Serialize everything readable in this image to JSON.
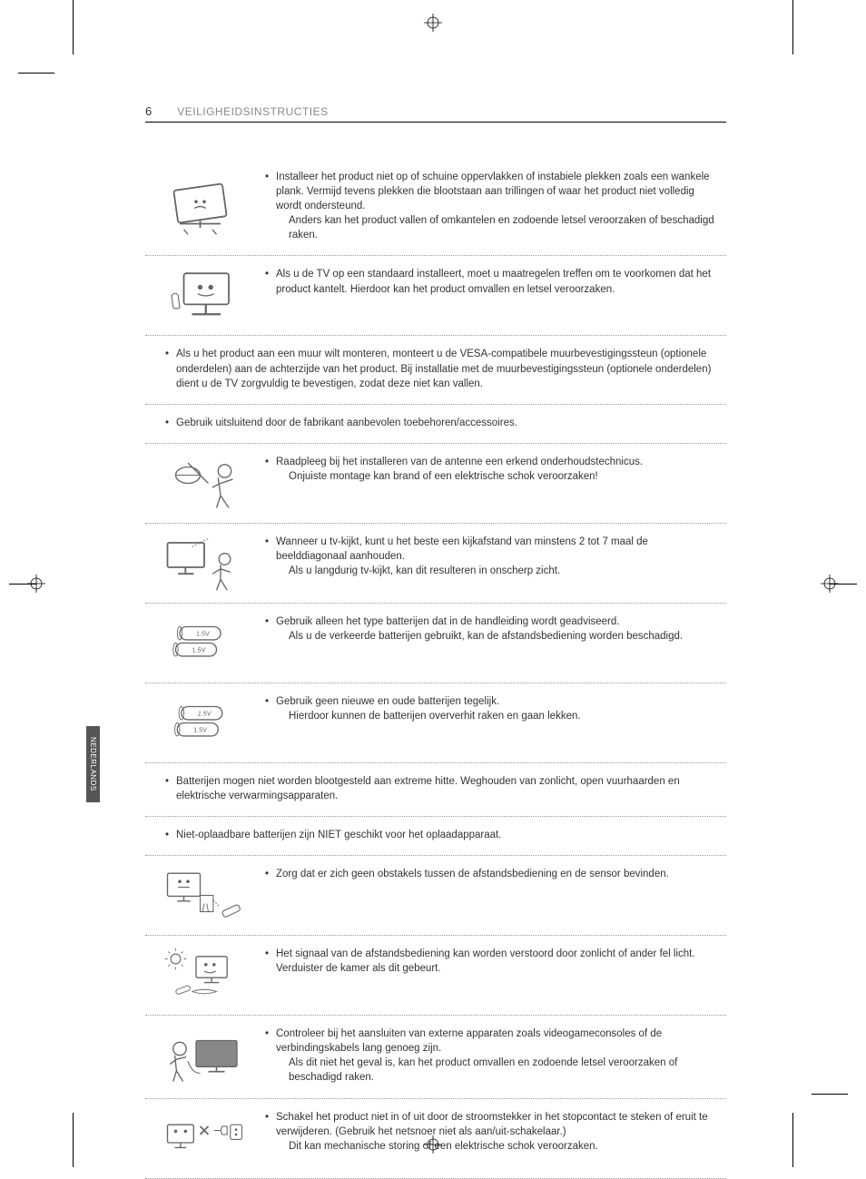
{
  "page_number": "6",
  "section_title": "VEILIGHEIDSINSTRUCTIES",
  "side_tab": "NEDERLANDS",
  "colors": {
    "text": "#333333",
    "muted": "#888888",
    "dots": "#999999",
    "tab_bg": "#555555",
    "tab_text": "#ffffff",
    "background": "#ffffff"
  },
  "rows": [
    {
      "icon": "tv-tilt",
      "items": [
        {
          "text": "Installeer het product niet op of schuine oppervlakken of instabiele plekken zoals een wankele plank. Vermijd tevens plekken die blootstaan aan trillingen of waar het product niet volledig wordt ondersteund.",
          "sub": "Anders kan het product vallen of omkantelen en zodoende letsel veroorzaken of beschadigd raken."
        }
      ]
    },
    {
      "icon": "tv-stand",
      "items": [
        {
          "text": "Als u de TV op een standaard installeert, moet u maatregelen treffen om te voorkomen dat het product kantelt. Hierdoor kan het product omvallen en letsel veroorzaken."
        }
      ]
    },
    {
      "icon": null,
      "items": [
        {
          "text": "Als u het product aan een muur wilt monteren, monteert u de VESA-compatibele muurbevestigingssteun (optionele onderdelen) aan de achterzijde van het product. Bij installatie met de muurbevestigingssteun (optionele onderdelen) dient u de TV zorgvuldig te bevestigen, zodat deze niet kan vallen."
        }
      ]
    },
    {
      "icon": null,
      "items": [
        {
          "text": "Gebruik uitsluitend door de fabrikant aanbevolen toebehoren/accessoires."
        }
      ]
    },
    {
      "icon": "antenna-tech",
      "items": [
        {
          "text": "Raadpleeg bij het installeren van de antenne een erkend onderhoudstechnicus.",
          "sub": "Onjuiste montage kan brand of een elektrische schok veroorzaken!"
        }
      ]
    },
    {
      "icon": "tv-distance",
      "items": [
        {
          "text": "Wanneer u tv-kijkt, kunt u het beste een kijkafstand van minstens 2 tot 7 maal de beelddiagonaal aanhouden.",
          "sub": "Als u langdurig tv-kijkt, kan dit resulteren in onscherp zicht."
        }
      ]
    },
    {
      "icon": "batteries-1",
      "items": [
        {
          "text": "Gebruik alleen het type batterijen dat in de handleiding wordt geadviseerd.",
          "sub": "Als u de verkeerde batterijen gebruikt, kan de afstandsbediening worden beschadigd."
        }
      ]
    },
    {
      "icon": "batteries-2",
      "items": [
        {
          "text": "Gebruik geen nieuwe en oude batterijen tegelijk.",
          "sub": "Hierdoor kunnen de batterijen oververhit raken en gaan lekken."
        }
      ]
    },
    {
      "icon": null,
      "items": [
        {
          "text": "Batterijen mogen niet worden blootgesteld aan extreme hitte. Weghouden van zonlicht, open vuurhaarden en elektrische verwarmingsapparaten."
        }
      ]
    },
    {
      "icon": null,
      "items": [
        {
          "text": "Niet-oplaadbare batterijen zijn NIET geschikt voor het oplaadapparaat."
        }
      ]
    },
    {
      "icon": "remote-obstacle",
      "items": [
        {
          "text": "Zorg dat er zich geen obstakels tussen de afstandsbediening en de sensor bevinden."
        }
      ]
    },
    {
      "icon": "remote-sunlight",
      "items": [
        {
          "text": "Het signaal van de afstandsbediening kan worden verstoord door zonlicht of ander fel licht. Verduister de kamer als dit gebeurt."
        }
      ]
    },
    {
      "icon": "cable-length",
      "items": [
        {
          "text": "Controleer bij het aansluiten van externe apparaten zoals videogameconsoles of de verbindingskabels lang genoeg zijn.",
          "sub": "Als dit niet het geval is, kan het product omvallen en zodoende letsel veroorzaken of beschadigd raken."
        }
      ]
    },
    {
      "icon": "plug-switch",
      "items": [
        {
          "text": "Schakel het product niet in of uit door de stroomstekker in het stopcontact te steken of eruit te verwijderen. (Gebruik het netsnoer niet als aan/uit-schakelaar.)",
          "sub": "Dit kan mechanische storing of een elektrische schok veroorzaken."
        }
      ]
    }
  ]
}
